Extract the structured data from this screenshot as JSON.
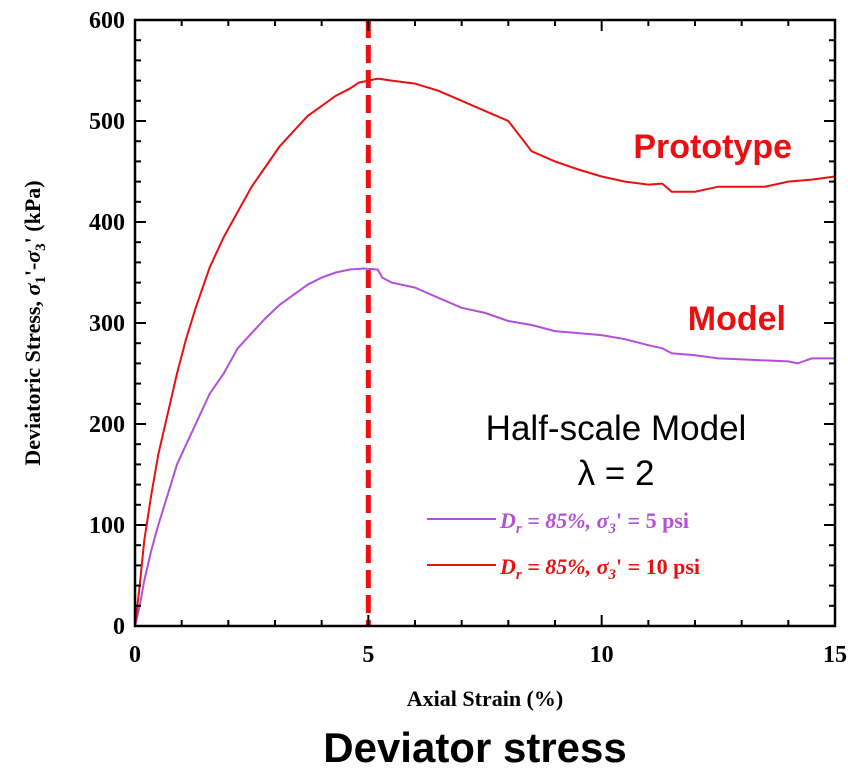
{
  "chart_data": {
    "type": "line",
    "caption": "Deviator stress",
    "xlabel": "Axial Strain (%)",
    "ylabel": {
      "prefix": "Deviatoric Stress, ",
      "sigma": "σ",
      "sub1": "1",
      "prime_dash": "'-",
      "sub3": "3",
      "suffix": "' (kPa)"
    },
    "xlim": [
      0,
      15
    ],
    "ylim": [
      0,
      600
    ],
    "x_ticks": [
      0,
      5,
      10,
      15
    ],
    "y_ticks": [
      0,
      100,
      200,
      300,
      400,
      500,
      600
    ],
    "grid": false,
    "reference_line": {
      "x": 5,
      "style": "dashed",
      "color": "#ee1111"
    },
    "annotations": {
      "prototype": "Prototype",
      "model": "Model",
      "scale_line1": "Half-scale Model",
      "scale_line2": "λ = 2"
    },
    "legend": {
      "placement": "lower-right",
      "entries": [
        {
          "series": 0,
          "D": "D",
          "r": "r",
          "eq": " = 85%, ",
          "sigma": "σ",
          "s3": "3",
          "rest": "' = 5 psi"
        },
        {
          "series": 1,
          "D": "D",
          "r": "r",
          "eq": " = 85%, ",
          "sigma": "σ",
          "s3": "3",
          "rest": "' = 10 psi"
        }
      ]
    },
    "series": [
      {
        "color": "#b44fd8",
        "x": [
          0,
          0.1,
          0.2,
          0.35,
          0.5,
          0.7,
          0.9,
          1.1,
          1.3,
          1.6,
          1.9,
          2.2,
          2.5,
          2.8,
          3.1,
          3.4,
          3.7,
          4.0,
          4.3,
          4.6,
          4.9,
          5.2,
          5.3,
          5.5,
          6.0,
          6.5,
          7.0,
          7.5,
          8.0,
          8.5,
          9.0,
          9.5,
          10.0,
          10.5,
          11.0,
          11.3,
          11.5,
          12.0,
          12.5,
          13.0,
          13.5,
          14.0,
          14.2,
          14.5,
          15.0
        ],
        "y": [
          0,
          20,
          45,
          75,
          100,
          130,
          160,
          180,
          200,
          230,
          250,
          275,
          290,
          305,
          318,
          328,
          338,
          345,
          350,
          353,
          354,
          353,
          345,
          340,
          335,
          325,
          315,
          310,
          302,
          298,
          292,
          290,
          288,
          284,
          278,
          275,
          270,
          268,
          265,
          264,
          263,
          262,
          260,
          265,
          265
        ]
      },
      {
        "color": "#e81010",
        "x": [
          0,
          0.1,
          0.2,
          0.35,
          0.5,
          0.7,
          0.9,
          1.1,
          1.3,
          1.6,
          1.9,
          2.2,
          2.5,
          2.8,
          3.1,
          3.4,
          3.7,
          4.0,
          4.3,
          4.6,
          4.8,
          5.0,
          5.2,
          5.5,
          6.0,
          6.5,
          7.0,
          7.5,
          8.0,
          8.5,
          9.0,
          9.5,
          10.0,
          10.5,
          11.0,
          11.3,
          11.5,
          12.0,
          12.5,
          13.0,
          13.5,
          14.0,
          14.5,
          15.0
        ],
        "y": [
          0,
          40,
          85,
          130,
          170,
          210,
          250,
          285,
          315,
          355,
          385,
          410,
          435,
          455,
          475,
          490,
          505,
          515,
          525,
          532,
          538,
          540,
          542,
          540,
          537,
          530,
          520,
          510,
          500,
          470,
          460,
          452,
          445,
          440,
          437,
          438,
          430,
          430,
          435,
          435,
          435,
          440,
          442,
          445
        ]
      }
    ]
  }
}
